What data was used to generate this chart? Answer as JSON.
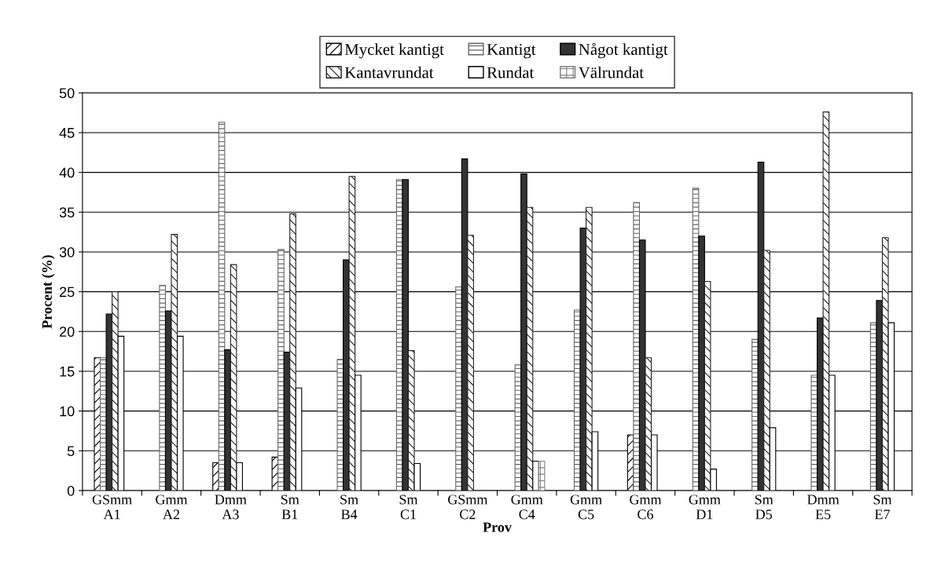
{
  "chart_data": {
    "type": "bar",
    "xlabel": "Prov",
    "ylabel": "Procent (%)",
    "categories": [
      "GSmm\nA1",
      "Gmm\nA2",
      "Dmm\nA3",
      "Sm\nB1",
      "Sm\nB4",
      "Sm\nC1",
      "GSmm\nC2",
      "Gmm\nC4",
      "Gmm\nC5",
      "Gmm\nC6",
      "Gmm\nD1",
      "Sm\nD5",
      "Dmm\nE5",
      "Sm\nE7"
    ],
    "series": [
      {
        "name": "Mycket kantigt",
        "color": "#000000",
        "values": [
          16.7,
          null,
          3.5,
          4.2,
          null,
          null,
          null,
          null,
          null,
          7.0,
          null,
          null,
          null,
          null
        ]
      },
      {
        "name": "Kantigt",
        "color": "#666666",
        "values": [
          16.7,
          25.8,
          46.3,
          30.3,
          16.5,
          39.1,
          25.6,
          15.8,
          22.7,
          36.2,
          38.0,
          19.0,
          14.5,
          21.1
        ]
      },
      {
        "name": "Något kantigt",
        "color": "#333333",
        "values": [
          22.2,
          22.6,
          17.7,
          17.4,
          29.0,
          39.1,
          41.7,
          39.8,
          33.0,
          31.5,
          32.0,
          41.3,
          21.7,
          23.9
        ]
      },
      {
        "name": "Kantavrundat",
        "color": "#202020",
        "values": [
          25.0,
          32.2,
          28.4,
          34.8,
          39.5,
          17.6,
          32.1,
          35.6,
          35.6,
          16.7,
          26.3,
          30.2,
          47.6,
          31.8
        ]
      },
      {
        "name": "Rundat",
        "color": "#ffffff",
        "values": [
          19.4,
          19.4,
          3.5,
          12.9,
          14.5,
          3.4,
          null,
          3.7,
          7.4,
          7.0,
          2.7,
          7.9,
          14.5,
          21.1
        ]
      },
      {
        "name": "Välrundat",
        "color": "#808080",
        "values": [
          null,
          null,
          null,
          null,
          null,
          null,
          null,
          3.7,
          null,
          null,
          null,
          null,
          null,
          null
        ]
      }
    ],
    "ylim": [
      0,
      50
    ],
    "yticks": [
      0,
      5,
      10,
      15,
      20,
      25,
      30,
      35,
      40,
      45,
      50
    ],
    "grid": "y",
    "legend": "top"
  }
}
